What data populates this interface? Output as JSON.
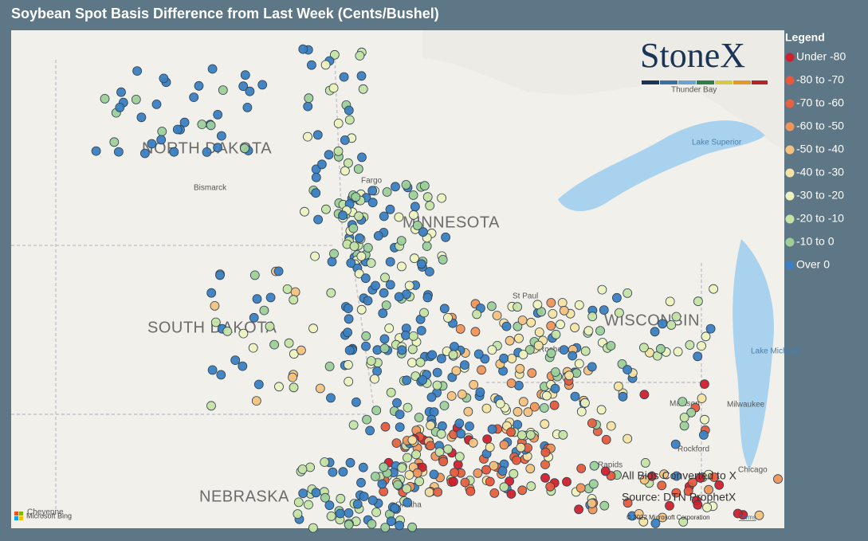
{
  "header": {
    "title": "Soybean Spot Basis Difference from Last Week (Cents/Bushel)"
  },
  "legend": {
    "title": "Legend",
    "items": [
      {
        "label": "Under -80",
        "color": "#d0202e"
      },
      {
        "label": "-80 to -70",
        "color": "#e8583c"
      },
      {
        "label": "-70 to -60",
        "color": "#e4623f"
      },
      {
        "label": "-60 to -50",
        "color": "#ef955b"
      },
      {
        "label": "-50 to -40",
        "color": "#f6c27e"
      },
      {
        "label": "-40 to -30",
        "color": "#f6e3a3"
      },
      {
        "label": "-30 to -20",
        "color": "#eef2bf"
      },
      {
        "label": "-20 to -10",
        "color": "#c6e3a5"
      },
      {
        "label": "-10 to 0",
        "color": "#9dcf99"
      },
      {
        "label": "Over 0",
        "color": "#3a80c2"
      }
    ]
  },
  "logo": {
    "text": "StoneX"
  },
  "map": {
    "labels": {
      "north_dakota": "NORTH DAKOTA",
      "minnesota": "MINNESOTA",
      "south_dakota": "SOUTH DAKOTA",
      "wisconsin": "WISCONSIN",
      "nebraska": "NEBRASKA",
      "bismarck": "Bismarck",
      "fargo": "Fargo",
      "st_paul": "St Paul",
      "thunder_bay": "Thunder Bay",
      "lake_superior": "Lake Superior",
      "rochester": "Rochester",
      "madison": "Madison",
      "milwaukee": "Milwaukee",
      "lake_michigan": "Lake Michigan",
      "rockford": "Rockford",
      "chicago": "Chicago",
      "rapids": "Rapids",
      "omaha": "Omaha",
      "cheyenne": "Cheyenne"
    },
    "notes": [
      "All Bids Converted to X",
      "Source: DTN ProphetX"
    ],
    "attribution": {
      "bing": "Microsoft Bing",
      "copyright": "© 2022 Microsoft Corporation",
      "terms": "Terms"
    }
  }
}
